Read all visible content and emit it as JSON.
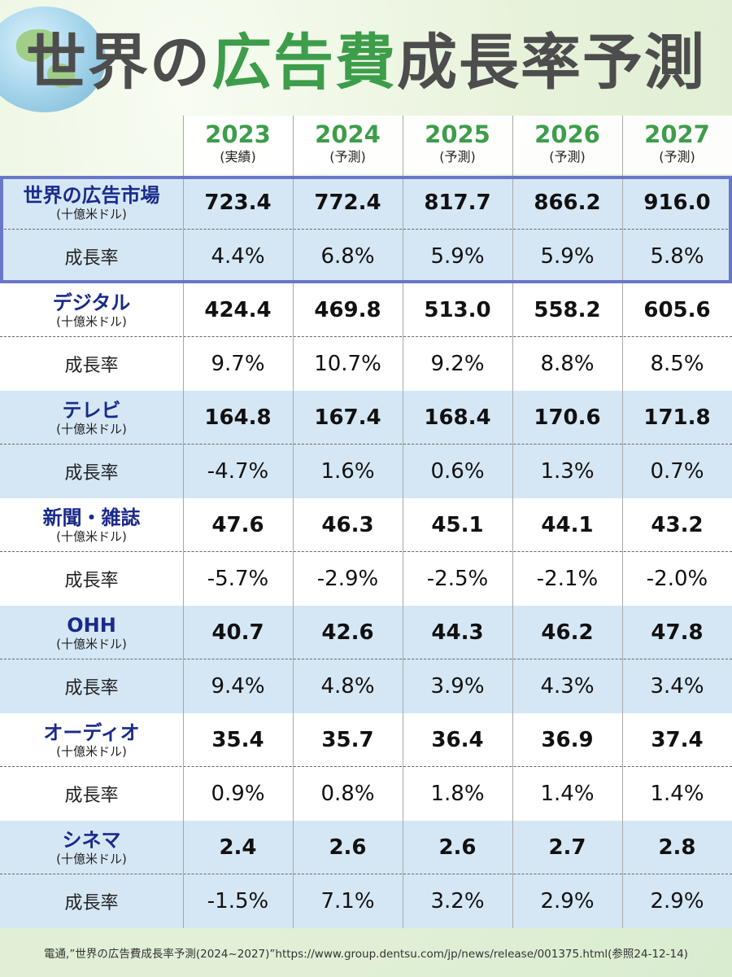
{
  "title": {
    "parts": [
      {
        "text": "世界の",
        "color": "#4d4d4d"
      },
      {
        "text": "広告費",
        "color": "#3d9d4a"
      },
      {
        "text": "成長率予測",
        "color": "#4d4d4d"
      }
    ]
  },
  "chart_data": {
    "type": "table",
    "columns": [
      {
        "year": "2023",
        "note": "(実績)"
      },
      {
        "year": "2024",
        "note": "(予測)"
      },
      {
        "year": "2025",
        "note": "(予測)"
      },
      {
        "year": "2026",
        "note": "(予測)"
      },
      {
        "year": "2027",
        "note": "(予測)"
      }
    ],
    "rows": [
      {
        "name": "世界の広告市場",
        "unit": "(十億米ドル)",
        "values": [
          "723.4",
          "772.4",
          "817.7",
          "866.2",
          "916.0"
        ],
        "rate_label": "成長率",
        "rates": [
          "4.4%",
          "6.8%",
          "5.9%",
          "5.9%",
          "5.8%"
        ]
      },
      {
        "name": "デジタル",
        "unit": "(十億米ドル)",
        "values": [
          "424.4",
          "469.8",
          "513.0",
          "558.2",
          "605.6"
        ],
        "rate_label": "成長率",
        "rates": [
          "9.7%",
          "10.7%",
          "9.2%",
          "8.8%",
          "8.5%"
        ]
      },
      {
        "name": "テレビ",
        "unit": "(十億米ドル)",
        "values": [
          "164.8",
          "167.4",
          "168.4",
          "170.6",
          "171.8"
        ],
        "rate_label": "成長率",
        "rates": [
          "-4.7%",
          "1.6%",
          "0.6%",
          "1.3%",
          "0.7%"
        ]
      },
      {
        "name": "新聞・雑誌",
        "unit": "(十億米ドル)",
        "values": [
          "47.6",
          "46.3",
          "45.1",
          "44.1",
          "43.2"
        ],
        "rate_label": "成長率",
        "rates": [
          "-5.7%",
          "-2.9%",
          "-2.5%",
          "-2.1%",
          "-2.0%"
        ]
      },
      {
        "name": "OHH",
        "unit": "(十億米ドル)",
        "values": [
          "40.7",
          "42.6",
          "44.3",
          "46.2",
          "47.8"
        ],
        "rate_label": "成長率",
        "rates": [
          "9.4%",
          "4.8%",
          "3.9%",
          "4.3%",
          "3.4%"
        ]
      },
      {
        "name": "オーディオ",
        "unit": "(十億米ドル)",
        "values": [
          "35.4",
          "35.7",
          "36.4",
          "36.9",
          "37.4"
        ],
        "rate_label": "成長率",
        "rates": [
          "0.9%",
          "0.8%",
          "1.8%",
          "1.4%",
          "1.4%"
        ]
      },
      {
        "name": "シネマ",
        "unit": "(十億米ドル)",
        "values": [
          "2.4",
          "2.6",
          "2.6",
          "2.7",
          "2.8"
        ],
        "rate_label": "成長率",
        "rates": [
          "-1.5%",
          "7.1%",
          "3.2%",
          "2.9%",
          "2.9%"
        ]
      }
    ]
  },
  "source": "電通,”世界の広告費成長率予測(2024~2027)”https://www.group.dentsu.com/jp/news/release/001375.html(参照24-12-14)",
  "colors": {
    "accent_green": "#3d9d4a",
    "label_navy": "#1a2a8a",
    "row_blue": "#d5e7f5",
    "frame": "#6877c9"
  }
}
